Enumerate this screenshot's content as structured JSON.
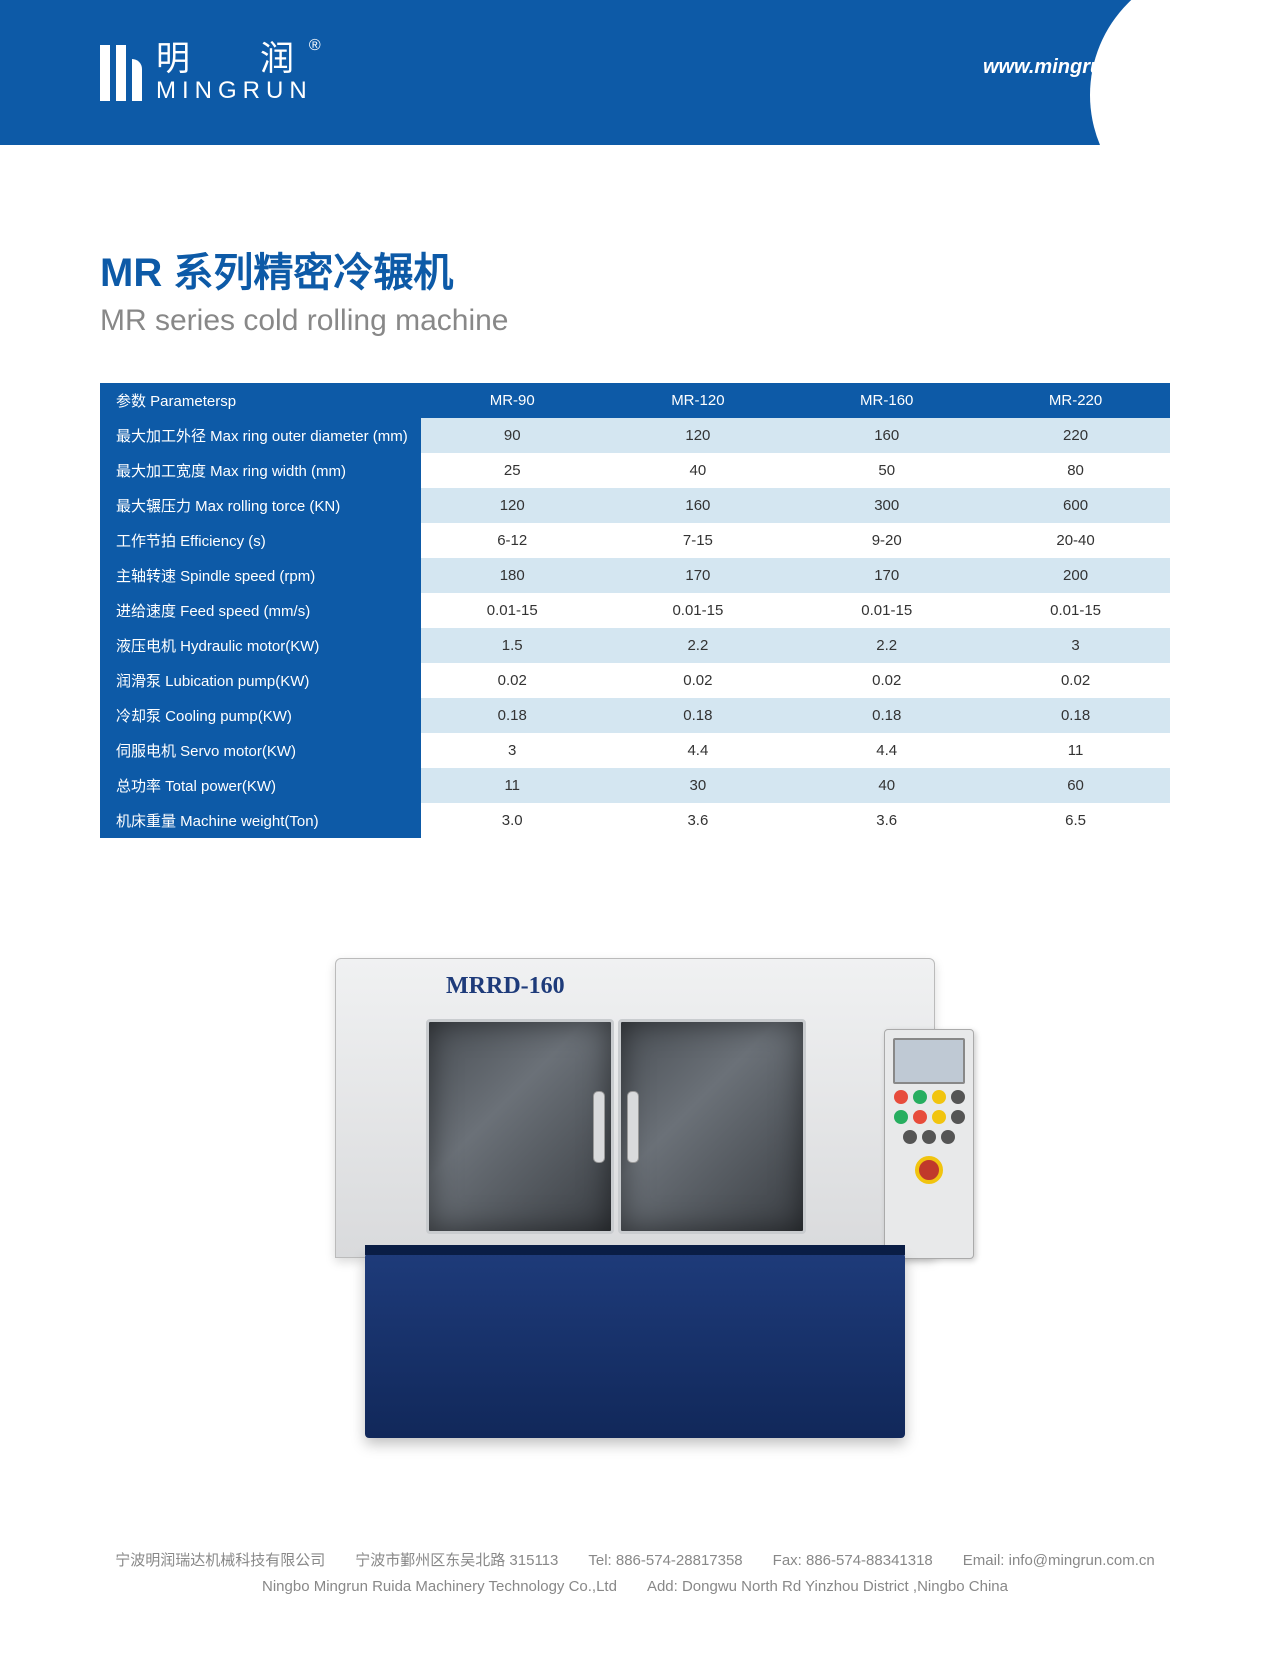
{
  "header": {
    "logo_cn": "明　润",
    "logo_en": "MINGRUN",
    "url": "www.mingrun.com.cn"
  },
  "title": {
    "cn": "MR 系列精密冷辗机",
    "en": "MR series cold rolling machine"
  },
  "table": {
    "header": [
      "参数 Parametersp",
      "MR-90",
      "MR-120",
      "MR-160",
      "MR-220"
    ],
    "rows": [
      [
        "最大加工外径 Max  ring outer diameter  (mm)",
        "90",
        "120",
        "160",
        "220"
      ],
      [
        "最大加工宽度 Max  ring width (mm)",
        "25",
        "40",
        "50",
        "80"
      ],
      [
        "最大辗压力 Max rolling torce (KN)",
        "120",
        "160",
        "300",
        "600"
      ],
      [
        "工作节拍 Efficiency (s)",
        "6-12",
        "7-15",
        "9-20",
        "20-40"
      ],
      [
        "主轴转速 Spindle speed (rpm)",
        "180",
        "170",
        "170",
        "200"
      ],
      [
        "进给速度 Feed speed (mm/s)",
        "0.01-15",
        "0.01-15",
        "0.01-15",
        "0.01-15"
      ],
      [
        "液压电机 Hydraulic motor(KW)",
        "1.5",
        "2.2",
        "2.2",
        "3"
      ],
      [
        "润滑泵 Lubication pump(KW)",
        "0.02",
        "0.02",
        "0.02",
        "0.02"
      ],
      [
        "冷却泵 Cooling pump(KW)",
        "0.18",
        "0.18",
        "0.18",
        "0.18"
      ],
      [
        "伺服电机 Servo motor(KW)",
        "3",
        "4.4",
        "4.4",
        "11"
      ],
      [
        "总功率 Total power(KW)",
        "11",
        "30",
        "40",
        "60"
      ],
      [
        "机床重量 Machine weight(Ton)",
        "3.0",
        "3.6",
        "3.6",
        "6.5"
      ]
    ]
  },
  "machine_label": "MRRD-160",
  "footer": {
    "line1": "宁波明润瑞达机械科技有限公司　　宁波市鄞州区东吴北路 315113　　Tel: 886-574-28817358　　Fax: 886-574-88341318　　Email: info@mingrun.com.cn",
    "line2": "Ningbo Mingrun Ruida Machinery Technology Co.,Ltd　　Add: Dongwu North Rd Yinzhou District ,Ningbo China"
  },
  "colors": {
    "brand_blue": "#0d5aa7",
    "row_stripe": "#d4e6f1",
    "machine_base": "#1e3b7a"
  }
}
